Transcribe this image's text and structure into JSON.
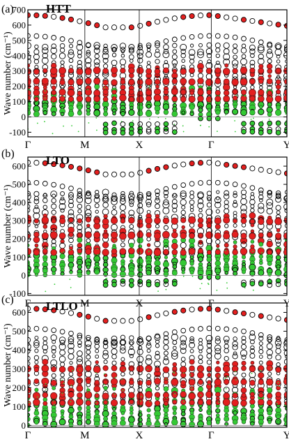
{
  "figure": {
    "ylabel": "Wave number (cm⁻¹)",
    "colors": {
      "frame": "#000000",
      "red": "#e41f1f",
      "green": "#34c934",
      "dark": "#1b4d1b",
      "guide": "#888888"
    }
  },
  "chart_data": [
    {
      "type": "scatter",
      "panel_label": "(a)",
      "title": "HTT",
      "ylabel": "Wave number (cm⁻¹)",
      "xlabel": "",
      "x_ticks": [
        "Γ",
        "M",
        "X",
        "Γ",
        "Y"
      ],
      "ylim": [
        -130,
        700
      ],
      "y_ticks": [
        -100,
        0,
        100,
        200,
        300,
        400,
        500,
        600,
        700
      ],
      "grid": "vertical lines at high-symmetry points",
      "features": {
        "top_band": {
          "start": 665,
          "min": 585,
          "end": 595
        },
        "second_band": {
          "at_gamma": 530,
          "at_x": 440
        },
        "flat_bands": [
          460,
          430,
          400,
          360,
          330,
          300,
          270,
          240,
          215,
          190,
          165,
          140,
          120,
          100,
          80,
          60,
          40,
          25
        ],
        "red_bands": [
          300,
          230,
          160,
          120
        ],
        "negative_modes": [
          -45,
          -80,
          -100
        ]
      }
    },
    {
      "type": "scatter",
      "panel_label": "(b)",
      "title": "LTO",
      "ylabel": "Wave number (cm⁻¹)",
      "xlabel": "",
      "x_ticks": [
        "Γ",
        "M",
        "X",
        "Γ",
        "Y"
      ],
      "ylim": [
        -110,
        650
      ],
      "y_ticks": [
        -100,
        0,
        100,
        200,
        300,
        400,
        500,
        600
      ],
      "grid": "vertical lines at high-symmetry points",
      "features": {
        "top_band": {
          "start": 620,
          "min": 555,
          "end": 560
        },
        "second_band": {
          "at_gamma": 510,
          "at_x": 420
        },
        "flat_bands": [
          450,
          430,
          410,
          380,
          350,
          320,
          300,
          270,
          240,
          215,
          190,
          165,
          140,
          120,
          100,
          80,
          60,
          40,
          25,
          10
        ],
        "red_bands": [
          300,
          220,
          130
        ],
        "negative_modes": [
          -35,
          -50
        ]
      }
    },
    {
      "type": "scatter",
      "panel_label": "(c)",
      "title": "LTLO",
      "ylabel": "Wave number (cm⁻¹)",
      "xlabel": "",
      "x_ticks": [
        "Γ",
        "M",
        "X",
        "Γ",
        "Y"
      ],
      "ylim": [
        -10,
        650
      ],
      "y_ticks": [
        0,
        100,
        200,
        300,
        400,
        500,
        600
      ],
      "grid": "vertical lines at high-symmetry points",
      "features": {
        "top_band": {
          "start": 620,
          "min": 555,
          "end": 560
        },
        "second_band": {
          "at_gamma": 515,
          "at_x": 440
        },
        "flat_bands": [
          460,
          440,
          420,
          390,
          360,
          330,
          300,
          270,
          240,
          215,
          190,
          165,
          140,
          120,
          100,
          80,
          60,
          40,
          25,
          10
        ],
        "red_bands": [
          300,
          230,
          160,
          120
        ],
        "negative_modes": []
      }
    }
  ]
}
